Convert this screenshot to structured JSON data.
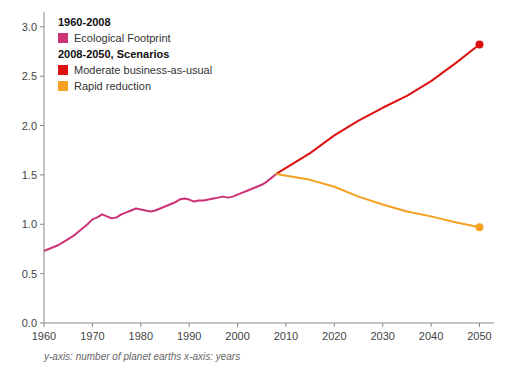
{
  "chart_data": {
    "type": "line",
    "xlim": [
      1960,
      2053
    ],
    "ylim": [
      0.0,
      3.15
    ],
    "xticks": [
      1960,
      1970,
      1980,
      1990,
      2000,
      2010,
      2020,
      2030,
      2040,
      2050
    ],
    "yticks": [
      {
        "value": 0.0,
        "label": "0.0"
      },
      0.5,
      {
        "value": 1.0,
        "label": "1.0"
      },
      1.5,
      {
        "value": 2.0,
        "label": "2.0"
      },
      2.5,
      {
        "value": 3.0,
        "label": "3.0"
      }
    ],
    "legend": "upper left",
    "annotations": [
      "1960-2008",
      "2008-2050, Scenarios",
      "y-axis: number of planet earths  x-axis: years"
    ],
    "series": [
      {
        "name": "Ecological Footprint",
        "color": "#cc3377",
        "x": [
          1960,
          1961,
          1962,
          1963,
          1964,
          1965,
          1966,
          1967,
          1968,
          1969,
          1970,
          1971,
          1972,
          1973,
          1974,
          1975,
          1976,
          1977,
          1978,
          1979,
          1980,
          1981,
          1982,
          1983,
          1984,
          1985,
          1986,
          1987,
          1988,
          1989,
          1990,
          1991,
          1992,
          1993,
          1994,
          1995,
          1996,
          1997,
          1998,
          1999,
          2000,
          2001,
          2002,
          2003,
          2004,
          2005,
          2006,
          2007,
          2008
        ],
        "values": [
          0.73,
          0.75,
          0.77,
          0.79,
          0.82,
          0.85,
          0.88,
          0.92,
          0.96,
          1.0,
          1.05,
          1.07,
          1.1,
          1.08,
          1.06,
          1.07,
          1.1,
          1.12,
          1.14,
          1.16,
          1.15,
          1.14,
          1.13,
          1.14,
          1.16,
          1.18,
          1.2,
          1.22,
          1.25,
          1.26,
          1.25,
          1.23,
          1.24,
          1.24,
          1.25,
          1.26,
          1.27,
          1.28,
          1.27,
          1.28,
          1.3,
          1.32,
          1.34,
          1.36,
          1.38,
          1.4,
          1.43,
          1.47,
          1.51
        ]
      },
      {
        "name": "Moderate business-as-usual",
        "color": "#dd1111",
        "marker": "end",
        "x": [
          2008,
          2015,
          2020,
          2025,
          2030,
          2035,
          2040,
          2045,
          2050
        ],
        "values": [
          1.51,
          1.72,
          1.9,
          2.05,
          2.18,
          2.3,
          2.45,
          2.63,
          2.82
        ]
      },
      {
        "name": "Rapid reduction",
        "color": "#f5a020",
        "marker": "end",
        "x": [
          2008,
          2015,
          2020,
          2025,
          2030,
          2035,
          2040,
          2045,
          2050
        ],
        "values": [
          1.51,
          1.45,
          1.38,
          1.28,
          1.2,
          1.13,
          1.08,
          1.02,
          0.97
        ]
      }
    ]
  }
}
